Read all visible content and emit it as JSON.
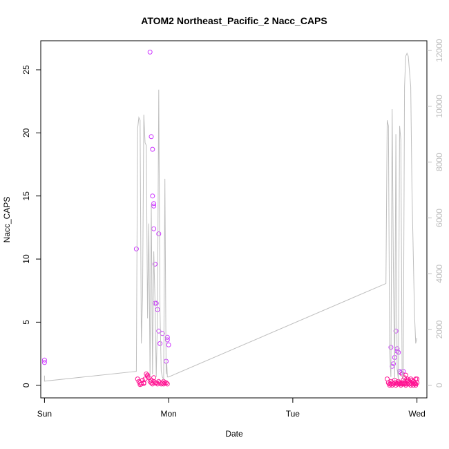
{
  "chart_data": {
    "type": "scatter",
    "title": "ATOM2 Northeast_Pacific_2 Nacc_CAPS",
    "xlabel": "Date",
    "ylabel": "Nacc_CAPS",
    "x_ticks": [
      "Sun",
      "Mon",
      "Tue",
      "Wed"
    ],
    "xlim": [
      -0.03,
      3.08
    ],
    "ylim": [
      -1.0,
      27.3
    ],
    "y_ticks": [
      0,
      5,
      10,
      15,
      20,
      25
    ],
    "y2lim": [
      -450,
      12350
    ],
    "y2_ticks": [
      0,
      2000,
      4000,
      6000,
      8000,
      10000,
      12000
    ],
    "grid": false,
    "colors": {
      "points_low": "#ff1493",
      "points_high": "#cc33ff",
      "line": "#bebebe",
      "axes": "#000000"
    },
    "series": [
      {
        "kind": "points",
        "axis": "left",
        "x": [
          0.0,
          0.0,
          0.74,
          0.85,
          0.86,
          0.87,
          0.87,
          0.88,
          0.88,
          0.88,
          0.89,
          0.9,
          0.89,
          0.91,
          0.92,
          0.95,
          0.92,
          0.99,
          0.99,
          1.0,
          0.98,
          0.75,
          0.76,
          0.77,
          0.78,
          0.79,
          0.8,
          0.81,
          0.82,
          0.83,
          0.84,
          0.85,
          0.86,
          0.86,
          0.87,
          0.88,
          0.89,
          0.9,
          0.91,
          0.92,
          0.93,
          0.94,
          0.95,
          0.96,
          0.97,
          0.98,
          0.99,
          0.77,
          0.8,
          0.83,
          0.88,
          0.93,
          0.96,
          2.76,
          2.77,
          2.78,
          2.79,
          2.8,
          2.81,
          2.82,
          2.83,
          2.84,
          2.85,
          2.86,
          2.87,
          2.88,
          2.89,
          2.9,
          2.91,
          2.92,
          2.93,
          2.94,
          2.95,
          2.96,
          2.97,
          2.98,
          2.99,
          3.0,
          2.78,
          2.79,
          2.8,
          2.81,
          2.82,
          2.83,
          2.84,
          2.85,
          2.86,
          2.87,
          2.88,
          2.89,
          2.9,
          2.91,
          2.92,
          2.93,
          2.94,
          2.95,
          2.96,
          2.97,
          2.98,
          2.99,
          2.83,
          2.84,
          2.84,
          2.85,
          2.82,
          2.81,
          2.8,
          2.79,
          2.86,
          2.87,
          2.88,
          2.89,
          2.9,
          2.91,
          2.92,
          2.93,
          2.94,
          2.95,
          2.96,
          2.97,
          2.98,
          2.99,
          3.0
        ],
        "y": [
          2.0,
          1.8,
          10.8,
          26.4,
          19.7,
          18.7,
          15.0,
          14.4,
          14.2,
          12.4,
          9.6,
          6.5,
          6.5,
          6.0,
          12.0,
          4.1,
          4.3,
          3.8,
          3.6,
          3.2,
          1.9,
          0.5,
          0.3,
          0.2,
          0.1,
          0.4,
          0.2,
          0.5,
          0.9,
          0.7,
          0.6,
          0.3,
          0.2,
          0.4,
          0.1,
          0.3,
          0.2,
          0.2,
          0.1,
          0.3,
          0.2,
          0.1,
          0.2,
          0.1,
          0.2,
          0.2,
          0.1,
          0.05,
          0.15,
          0.8,
          0.6,
          3.3,
          0.3,
          0.5,
          0.2,
          0.1,
          0.3,
          0.2,
          0.1,
          0.4,
          0.2,
          0.1,
          0.3,
          0.2,
          0.1,
          0.2,
          0.4,
          0.2,
          0.1,
          0.3,
          0.2,
          0.1,
          0.2,
          0.1,
          0.3,
          0.2,
          0.1,
          0.2,
          0.0,
          0.1,
          0.0,
          0.1,
          0.2,
          0.0,
          0.1,
          0.2,
          0.1,
          0.0,
          0.1,
          0.2,
          0.1,
          0.0,
          0.1,
          0.2,
          0.1,
          0.0,
          0.1,
          0.0,
          0.1,
          0.0,
          4.3,
          2.9,
          2.7,
          2.6,
          2.2,
          1.7,
          1.5,
          3.0,
          1.1,
          1.0,
          0.9,
          1.1,
          0.6,
          0.8,
          0.5,
          0.4,
          0.3,
          0.5,
          0.4,
          0.3,
          0.2,
          0.5,
          0.5
        ]
      },
      {
        "kind": "line",
        "axis": "right",
        "x": [
          0.0,
          0.0,
          0.74,
          0.75,
          0.76,
          0.77,
          0.78,
          0.79,
          0.8,
          0.81,
          0.82,
          0.83,
          0.84,
          0.85,
          0.86,
          0.87,
          0.88,
          0.89,
          0.9,
          0.91,
          0.92,
          0.93,
          0.94,
          0.95,
          0.96,
          0.97,
          0.98,
          0.985,
          0.99,
          1.0,
          2.75,
          2.76,
          2.77,
          2.78,
          2.79,
          2.8,
          2.81,
          2.82,
          2.83,
          2.84,
          2.85,
          2.86,
          2.87,
          2.88,
          2.89,
          2.9,
          2.91,
          2.92,
          2.93,
          2.95,
          2.96,
          2.97,
          2.98,
          2.99,
          3.0
        ],
        "y": [
          350,
          150,
          500,
          9200,
          9600,
          9500,
          1500,
          3200,
          9700,
          8700,
          8600,
          2400,
          5800,
          300,
          6500,
          400,
          4800,
          3000,
          300,
          2500,
          10600,
          2700,
          500,
          300,
          200,
          7400,
          400,
          800,
          300,
          300,
          3650,
          9500,
          9300,
          1200,
          300,
          9900,
          4300,
          200,
          9000,
          600,
          200,
          9300,
          8800,
          500,
          200,
          10700,
          11800,
          11900,
          11800,
          10700,
          7000,
          4800,
          2600,
          1500,
          1700
        ]
      }
    ]
  }
}
